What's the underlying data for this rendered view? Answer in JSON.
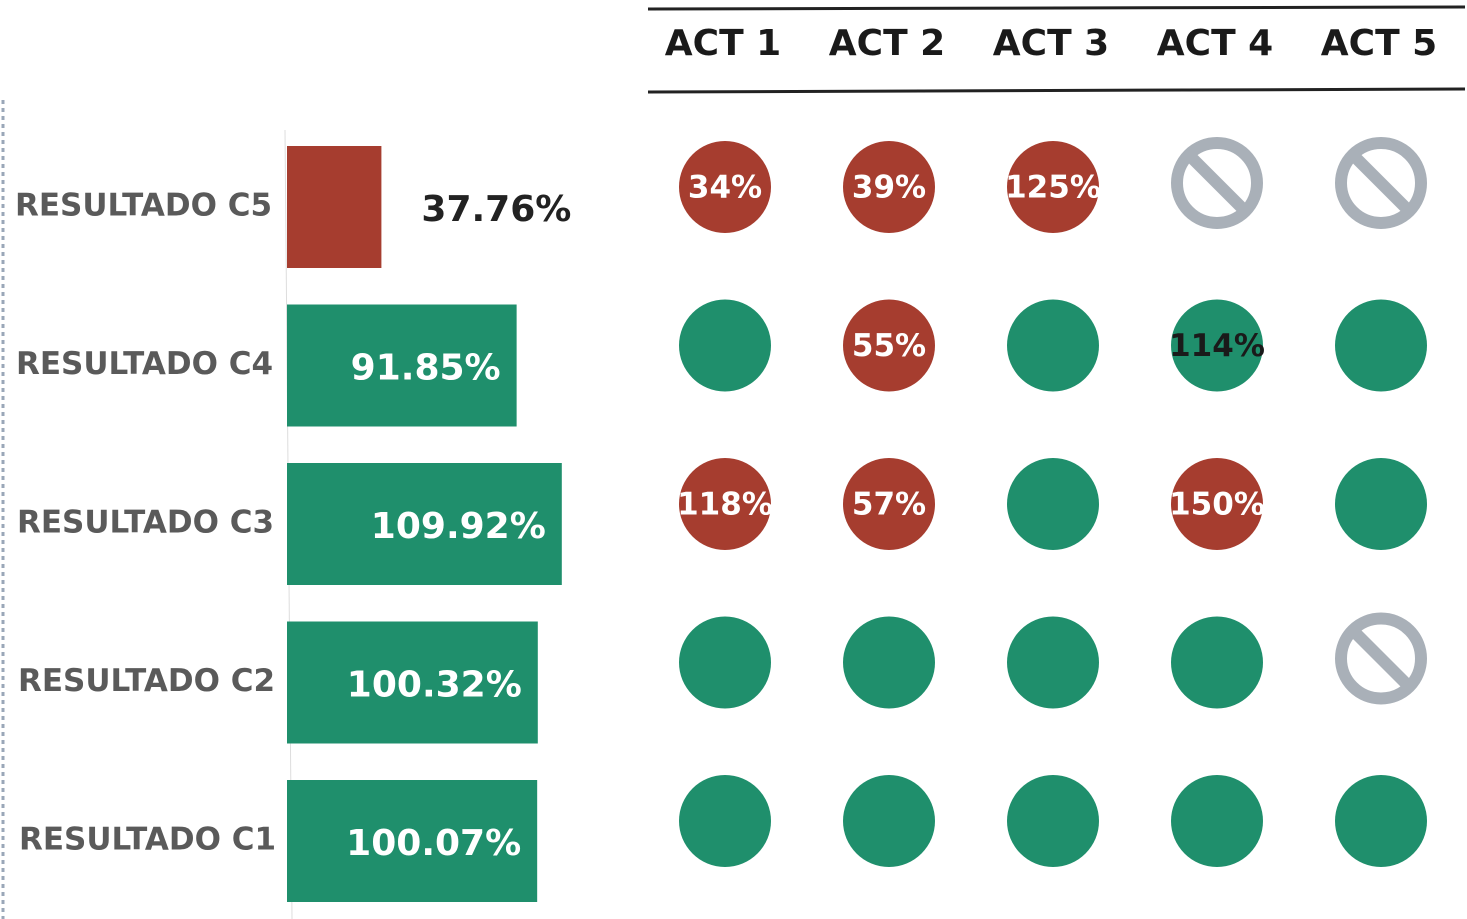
{
  "chart_data": [
    {
      "type": "hbar",
      "categories": [
        "RESULTADO C5",
        "RESULTADO C4",
        "RESULTADO C3",
        "RESULTADO C2",
        "RESULTADO C1"
      ],
      "values": [
        37.76,
        91.85,
        109.92,
        100.32,
        100.07
      ],
      "value_labels": [
        "37.76%",
        "91.85%",
        "109.92%",
        "100.32%",
        "100.07%"
      ],
      "colors": [
        "#a63d2f",
        "#1f8f6c",
        "#1f8f6c",
        "#1f8f6c",
        "#1f8f6c"
      ],
      "xlim": [
        0,
        120
      ]
    },
    {
      "type": "dot-matrix",
      "columns": [
        "ACT 1",
        "ACT 2",
        "ACT 3",
        "ACT 4",
        "ACT 5"
      ],
      "status_colors": {
        "low": "#a63d2f",
        "ok": "#1f8f6c",
        "na": "#a9b0b8"
      },
      "cells": [
        [
          {
            "status": "low",
            "value": 34,
            "label": "34%"
          },
          {
            "status": "low",
            "value": 39,
            "label": "39%"
          },
          {
            "status": "low",
            "value": 125,
            "label": "125%"
          },
          {
            "status": "na"
          },
          {
            "status": "na"
          }
        ],
        [
          {
            "status": "ok"
          },
          {
            "status": "low",
            "value": 55,
            "label": "55%"
          },
          {
            "status": "ok"
          },
          {
            "status": "ok",
            "value": 114,
            "label": "114%"
          },
          {
            "status": "ok"
          }
        ],
        [
          {
            "status": "low",
            "value": 118,
            "label": "118%"
          },
          {
            "status": "low",
            "value": 57,
            "label": "57%"
          },
          {
            "status": "ok"
          },
          {
            "status": "low",
            "value": 150,
            "label": "150%"
          },
          {
            "status": "ok"
          }
        ],
        [
          {
            "status": "ok"
          },
          {
            "status": "ok"
          },
          {
            "status": "ok"
          },
          {
            "status": "ok"
          },
          {
            "status": "na"
          }
        ],
        [
          {
            "status": "ok"
          },
          {
            "status": "ok"
          },
          {
            "status": "ok"
          },
          {
            "status": "ok"
          },
          {
            "status": "ok"
          }
        ]
      ]
    }
  ]
}
